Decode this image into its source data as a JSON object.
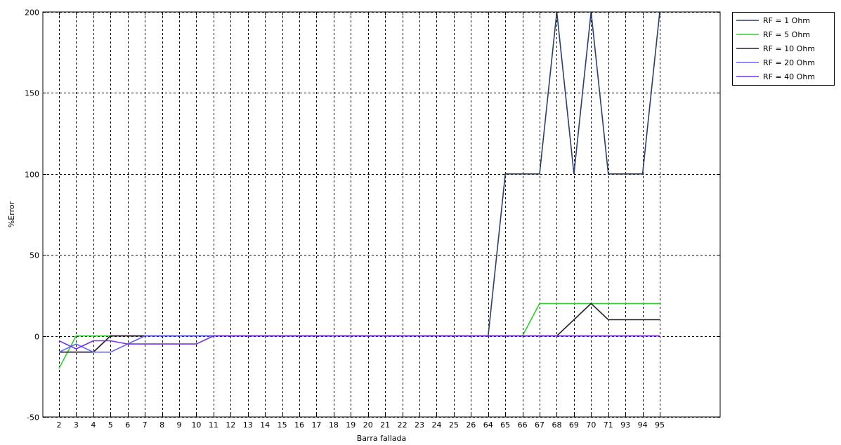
{
  "chart_data": {
    "type": "line",
    "title": "",
    "xlabel": "Barra fallada",
    "ylabel": "%Error",
    "categories": [
      "2",
      "3",
      "4",
      "5",
      "6",
      "7",
      "8",
      "9",
      "10",
      "11",
      "12",
      "13",
      "14",
      "15",
      "16",
      "17",
      "18",
      "19",
      "20",
      "21",
      "22",
      "23",
      "24",
      "25",
      "26",
      "64",
      "65",
      "66",
      "67",
      "68",
      "69",
      "70",
      "71",
      "93",
      "94",
      "95"
    ],
    "ylim": [
      -50,
      200
    ],
    "yticks": [
      -50,
      0,
      50,
      100,
      150,
      200
    ],
    "grid": true,
    "legend_position": "top-right (outside)",
    "series": [
      {
        "name": "RF = 1 Ohm",
        "color": "#2b3f6b",
        "values": [
          -10,
          -10,
          -10,
          0,
          0,
          0,
          0,
          0,
          0,
          0,
          0,
          0,
          0,
          0,
          0,
          0,
          0,
          0,
          0,
          0,
          0,
          0,
          0,
          0,
          0,
          0,
          100,
          100,
          100,
          200,
          100,
          200,
          100,
          100,
          100,
          200
        ]
      },
      {
        "name": "RF = 5 Ohm",
        "color": "#33cc33",
        "values": [
          -20,
          0,
          0,
          0,
          0,
          0,
          0,
          0,
          0,
          0,
          0,
          0,
          0,
          0,
          0,
          0,
          0,
          0,
          0,
          0,
          0,
          0,
          0,
          0,
          0,
          0,
          0,
          0,
          20,
          20,
          20,
          20,
          20,
          20,
          20,
          20
        ]
      },
      {
        "name": "RF = 10 Ohm",
        "color": "#2a1e2e",
        "values": [
          -10,
          -10,
          -10,
          0,
          0,
          0,
          0,
          0,
          0,
          0,
          0,
          0,
          0,
          0,
          0,
          0,
          0,
          0,
          0,
          0,
          0,
          0,
          0,
          0,
          0,
          0,
          0,
          0,
          0,
          0,
          10,
          20,
          10,
          10,
          10,
          10
        ]
      },
      {
        "name": "RF = 20 Ohm",
        "color": "#6666ee",
        "values": [
          -10,
          -5,
          -10,
          -10,
          -5,
          0,
          0,
          0,
          0,
          0,
          0,
          0,
          0,
          0,
          0,
          0,
          0,
          0,
          0,
          0,
          0,
          0,
          0,
          0,
          0,
          0,
          0,
          0,
          0,
          0,
          0,
          0,
          0,
          0,
          0,
          0
        ]
      },
      {
        "name": "RF = 40 Ohm",
        "color": "#7733dd",
        "values": [
          -3,
          -8,
          -3,
          -3,
          -5,
          -5,
          -5,
          -5,
          -5,
          0,
          0,
          0,
          0,
          0,
          0,
          0,
          0,
          0,
          0,
          0,
          0,
          0,
          0,
          0,
          0,
          0,
          0,
          0,
          0,
          0,
          0,
          0,
          0,
          0,
          0,
          0
        ]
      }
    ]
  }
}
